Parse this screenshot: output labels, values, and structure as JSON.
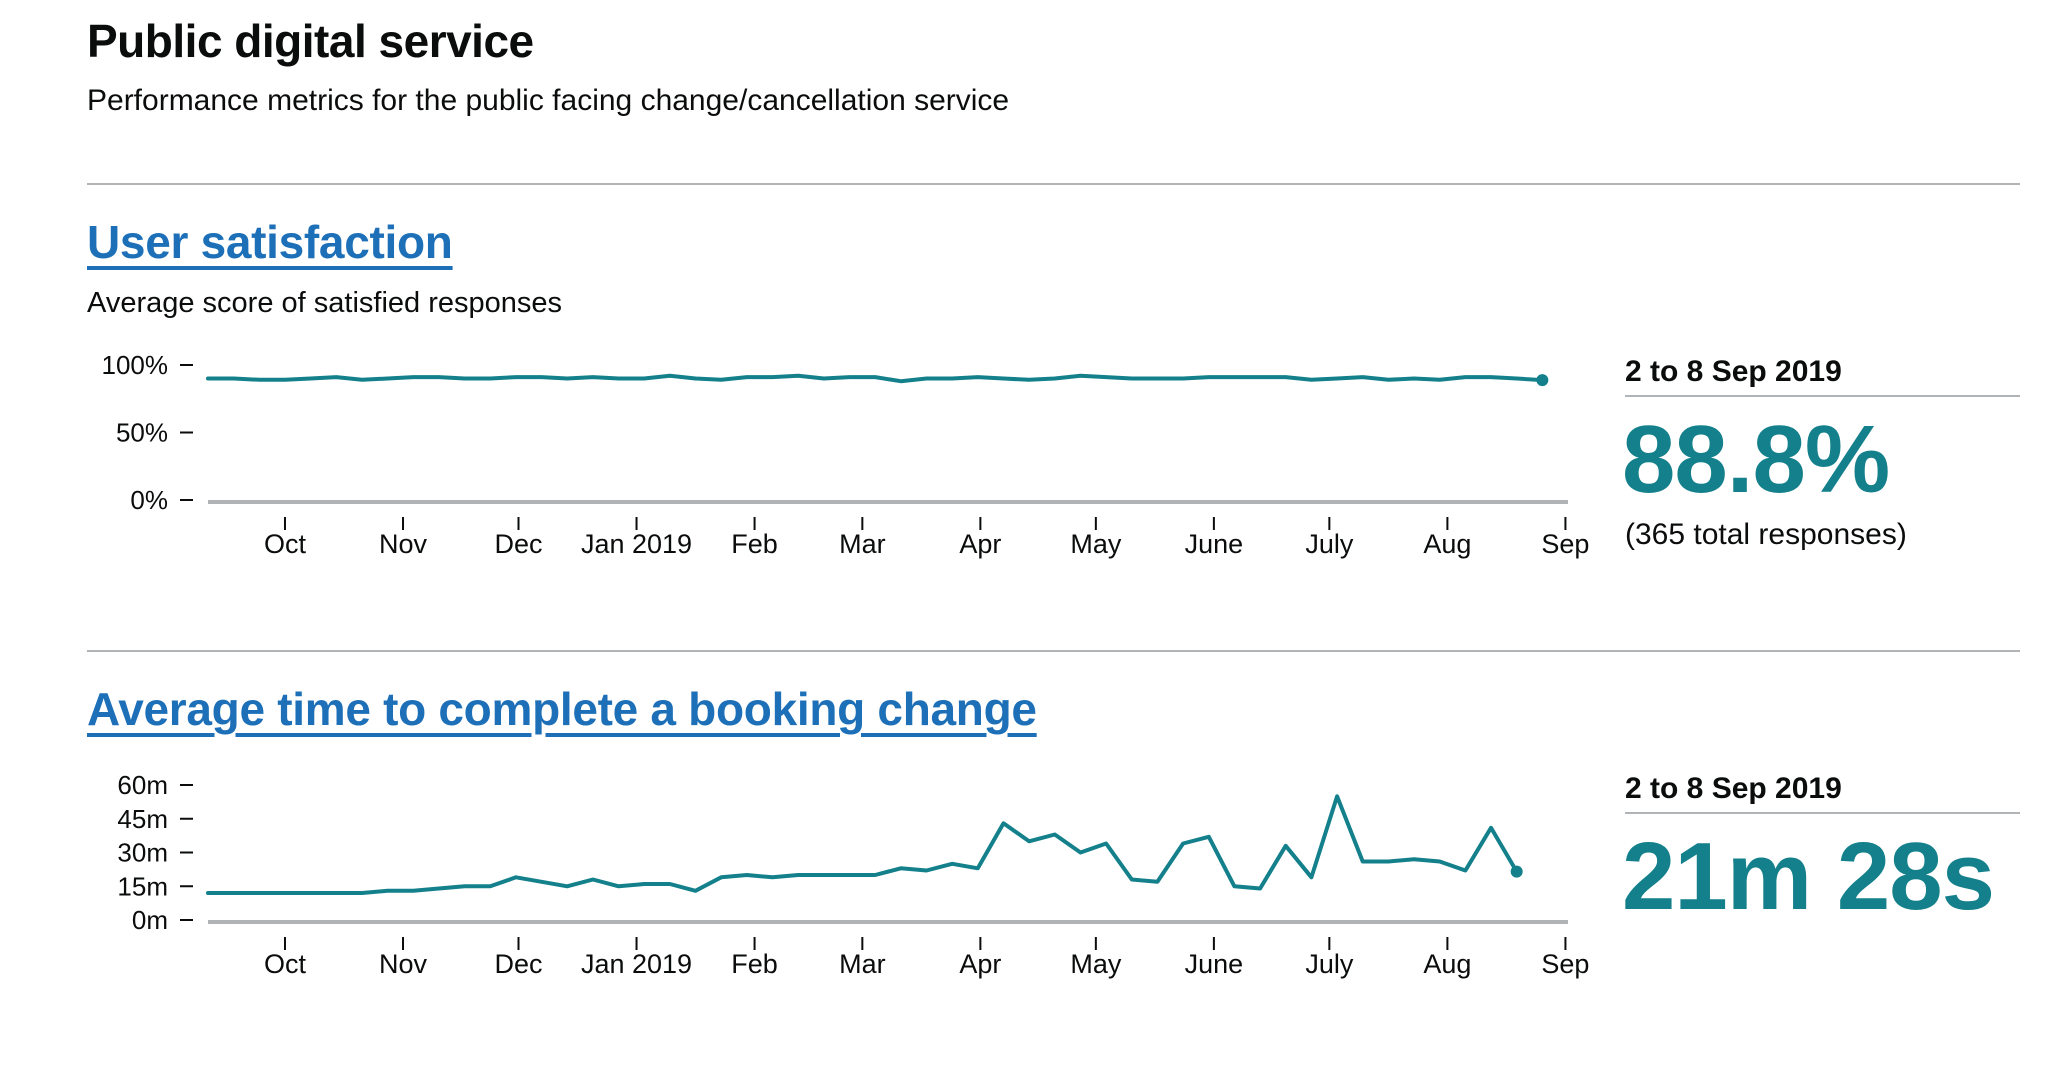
{
  "page": {
    "title": "Public digital service",
    "subtitle": "Performance metrics for the public facing change/cancellation service"
  },
  "colors": {
    "accent": "#13808b",
    "link": "#1d70b8",
    "axis": "#b1b4b6",
    "text": "#0b0c0c"
  },
  "sections": [
    {
      "title": "User satisfaction",
      "description": "Average score of satisfied responses",
      "period": "2 to 8 Sep 2019",
      "value": "88.8%",
      "note": "(365 total responses)"
    },
    {
      "title": "Average time to complete a booking change",
      "period": "2 to 8 Sep 2019",
      "value": "21m 28s"
    }
  ],
  "chart_data": [
    {
      "type": "line",
      "title": "User satisfaction",
      "ylabel": "Average score of satisfied responses",
      "ylim": [
        0,
        100
      ],
      "yticks": [
        {
          "value": 100,
          "label": "100%"
        },
        {
          "value": 50,
          "label": "50%"
        },
        {
          "value": 0,
          "label": "0%"
        }
      ],
      "xlim": [
        0,
        53
      ],
      "xticks": [
        {
          "pos": 3.0,
          "label": "Oct"
        },
        {
          "pos": 7.6,
          "label": "Nov"
        },
        {
          "pos": 12.1,
          "label": "Dec"
        },
        {
          "pos": 16.7,
          "label": "Jan 2019"
        },
        {
          "pos": 21.3,
          "label": "Feb"
        },
        {
          "pos": 25.5,
          "label": "Mar"
        },
        {
          "pos": 30.1,
          "label": "Apr"
        },
        {
          "pos": 34.6,
          "label": "May"
        },
        {
          "pos": 39.2,
          "label": "June"
        },
        {
          "pos": 43.7,
          "label": "July"
        },
        {
          "pos": 48.3,
          "label": "Aug"
        },
        {
          "pos": 52.9,
          "label": "Sep"
        }
      ],
      "series": [
        {
          "name": "Satisfaction",
          "values": [
            90,
            90,
            89,
            89,
            90,
            91,
            89,
            90,
            91,
            91,
            90,
            90,
            91,
            91,
            90,
            91,
            90,
            90,
            92,
            90,
            89,
            91,
            91,
            92,
            90,
            91,
            91,
            88,
            90,
            90,
            91,
            90,
            89,
            90,
            92,
            91,
            90,
            90,
            90,
            91,
            91,
            91,
            91,
            89,
            90,
            91,
            89,
            90,
            89,
            91,
            91,
            90,
            88.8
          ]
        }
      ]
    },
    {
      "type": "line",
      "title": "Average time to complete a booking change",
      "ylim": [
        0,
        60
      ],
      "yticks": [
        {
          "value": 60,
          "label": "60m"
        },
        {
          "value": 45,
          "label": "45m"
        },
        {
          "value": 30,
          "label": "30m"
        },
        {
          "value": 15,
          "label": "15m"
        },
        {
          "value": 0,
          "label": "0m"
        }
      ],
      "xlim": [
        0,
        53
      ],
      "xticks": [
        {
          "pos": 3.0,
          "label": "Oct"
        },
        {
          "pos": 7.6,
          "label": "Nov"
        },
        {
          "pos": 12.1,
          "label": "Dec"
        },
        {
          "pos": 16.7,
          "label": "Jan 2019"
        },
        {
          "pos": 21.3,
          "label": "Feb"
        },
        {
          "pos": 25.5,
          "label": "Mar"
        },
        {
          "pos": 30.1,
          "label": "Apr"
        },
        {
          "pos": 34.6,
          "label": "May"
        },
        {
          "pos": 39.2,
          "label": "June"
        },
        {
          "pos": 43.7,
          "label": "July"
        },
        {
          "pos": 48.3,
          "label": "Aug"
        },
        {
          "pos": 52.9,
          "label": "Sep"
        }
      ],
      "series": [
        {
          "name": "Average time (minutes)",
          "values": [
            12,
            12,
            12,
            12,
            12,
            12,
            12,
            13,
            13,
            14,
            15,
            15,
            19,
            17,
            15,
            18,
            15,
            16,
            16,
            13,
            19,
            20,
            19,
            20,
            20,
            20,
            20,
            23,
            22,
            25,
            23,
            43,
            35,
            38,
            30,
            34,
            18,
            17,
            34,
            37,
            15,
            14,
            33,
            19,
            55,
            26,
            26,
            27,
            26,
            22,
            41,
            21.5
          ]
        }
      ]
    }
  ]
}
